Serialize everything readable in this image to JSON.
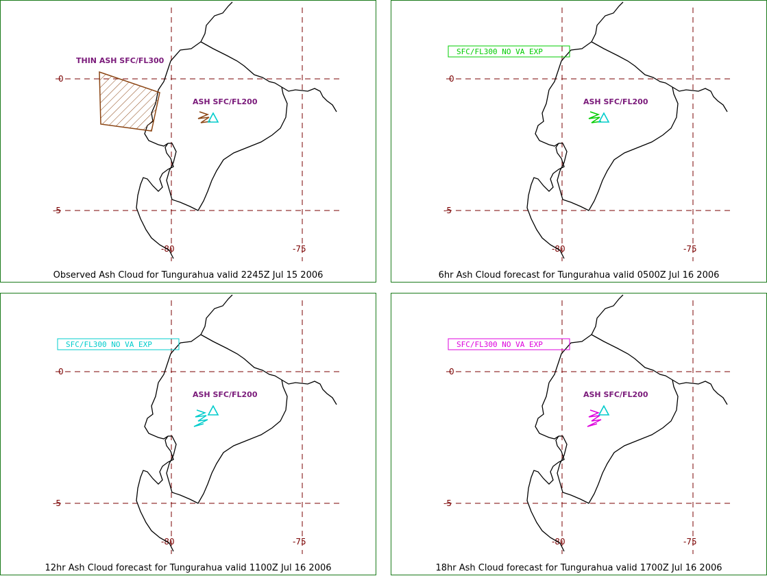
{
  "colors": {
    "frame": "#1a7a1a",
    "grid": "#7a0000",
    "coast": "#000000",
    "label": "#7a1a7a",
    "thin_ash": "#8b4513",
    "volcano": "#00cccc"
  },
  "axes": {
    "lat_labels": [
      "0",
      "-5"
    ],
    "lon_labels": [
      "-80",
      "-75"
    ]
  },
  "panels": [
    {
      "caption": "Observed Ash Cloud for Tungurahua valid 2245Z Jul 15 2006",
      "box_text": "",
      "thin_label": "THIN ASH SFC/FL300",
      "ash_label": "ASH SFC/FL200",
      "ash_color": "#8b4513",
      "box_color": ""
    },
    {
      "caption": "6hr Ash Cloud forecast for Tungurahua valid 0500Z Jul 16 2006",
      "box_text": "SFC/FL300 NO VA EXP",
      "thin_label": "",
      "ash_label": "ASH SFC/FL200",
      "ash_color": "#00cc00",
      "box_color": "#00cc00"
    },
    {
      "caption": "12hr Ash Cloud forecast for Tungurahua valid 1100Z Jul 16 2006",
      "box_text": "SFC/FL300 NO VA EXP",
      "thin_label": "",
      "ash_label": "ASH SFC/FL200",
      "ash_color": "#00cccc",
      "box_color": "#00cccc"
    },
    {
      "caption": "18hr Ash Cloud forecast for Tungurahua valid 1700Z Jul 16 2006",
      "box_text": "SFC/FL300 NO VA EXP",
      "thin_label": "",
      "ash_label": "ASH SFC/FL200",
      "ash_color": "#dd00dd",
      "box_color": "#dd00dd"
    }
  ]
}
